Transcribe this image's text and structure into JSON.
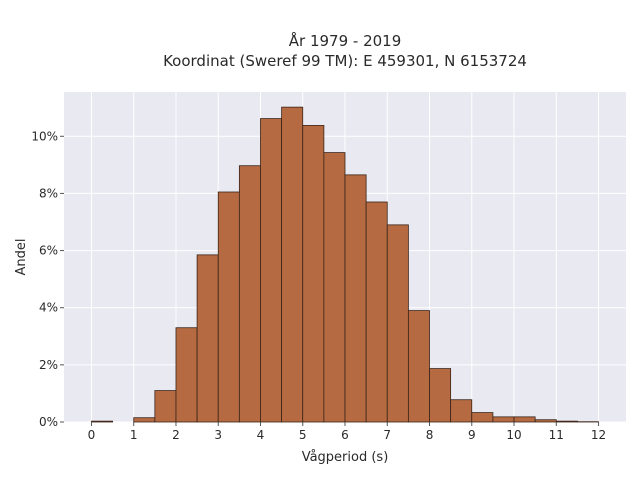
{
  "chart_data": {
    "type": "bar",
    "title": "År 1979 - 2019",
    "subtitle": "Koordinat (Sweref 99 TM): E 459301, N 6153724",
    "xlabel": "Vågperiod (s)",
    "ylabel": "Andel",
    "bin_width": 0.5,
    "bins": [
      {
        "start": 0.0,
        "value": 0.03
      },
      {
        "start": 0.5,
        "value": 0.0
      },
      {
        "start": 1.0,
        "value": 0.15
      },
      {
        "start": 1.5,
        "value": 1.1
      },
      {
        "start": 2.0,
        "value": 3.3
      },
      {
        "start": 2.5,
        "value": 5.85
      },
      {
        "start": 3.0,
        "value": 8.05
      },
      {
        "start": 3.5,
        "value": 8.97
      },
      {
        "start": 4.0,
        "value": 10.62
      },
      {
        "start": 4.5,
        "value": 11.02
      },
      {
        "start": 5.0,
        "value": 10.38
      },
      {
        "start": 5.5,
        "value": 9.43
      },
      {
        "start": 6.0,
        "value": 8.65
      },
      {
        "start": 6.5,
        "value": 7.7
      },
      {
        "start": 7.0,
        "value": 6.9
      },
      {
        "start": 7.5,
        "value": 3.9
      },
      {
        "start": 8.0,
        "value": 1.87
      },
      {
        "start": 8.5,
        "value": 0.78
      },
      {
        "start": 9.0,
        "value": 0.33
      },
      {
        "start": 9.5,
        "value": 0.18
      },
      {
        "start": 10.0,
        "value": 0.18
      },
      {
        "start": 10.5,
        "value": 0.08
      },
      {
        "start": 11.0,
        "value": 0.03
      },
      {
        "start": 11.5,
        "value": 0.01
      }
    ],
    "xlim": [
      -0.65,
      12.65
    ],
    "ylim": [
      0,
      11.55
    ],
    "xticks": [
      0,
      1,
      2,
      3,
      4,
      5,
      6,
      7,
      8,
      9,
      10,
      11,
      12
    ],
    "yticks": [
      0,
      2,
      4,
      6,
      8,
      10
    ],
    "ytick_labels": [
      "0%",
      "2%",
      "4%",
      "6%",
      "8%",
      "10%"
    ],
    "grid": true,
    "colors": {
      "bar_fill": "#b56a42",
      "bar_edge": "#3a2418",
      "plot_background": "#e9e9f1",
      "grid": "#ffffff"
    }
  }
}
